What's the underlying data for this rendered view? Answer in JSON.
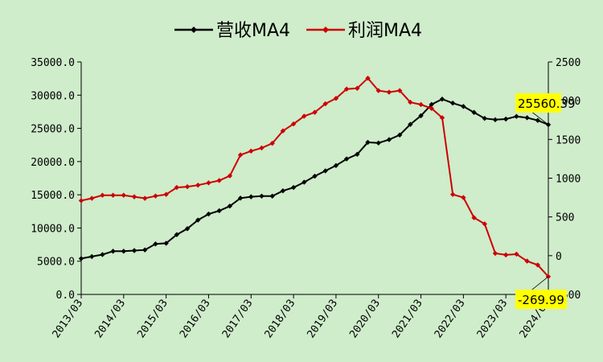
{
  "chart_data": {
    "type": "line",
    "x": [
      "2013/03",
      "2013/06",
      "2013/09",
      "2013/12",
      "2014/03",
      "2014/06",
      "2014/09",
      "2014/12",
      "2015/03",
      "2015/06",
      "2015/09",
      "2015/12",
      "2016/03",
      "2016/06",
      "2016/09",
      "2016/12",
      "2017/03",
      "2017/06",
      "2017/09",
      "2017/12",
      "2018/03",
      "2018/06",
      "2018/09",
      "2018/12",
      "2019/03",
      "2019/06",
      "2019/09",
      "2019/12",
      "2020/03",
      "2020/06",
      "2020/09",
      "2020/12",
      "2021/03",
      "2021/06",
      "2021/09",
      "2021/12",
      "2022/03",
      "2022/06",
      "2022/09",
      "2022/12",
      "2023/03",
      "2023/06",
      "2023/09",
      "2023/12",
      "2024/03"
    ],
    "x_tick_labels": [
      "2013/03",
      "2014/03",
      "2015/03",
      "2016/03",
      "2017/03",
      "2018/03",
      "2019/03",
      "2020/03",
      "2021/03",
      "2022/03",
      "2023/03",
      "2024/03"
    ],
    "series": [
      {
        "name": "营收MA4",
        "axis": "left",
        "color": "#000000",
        "values": [
          5400,
          5700,
          6000,
          6500,
          6500,
          6600,
          6700,
          7600,
          7700,
          9000,
          9900,
          11200,
          12100,
          12600,
          13300,
          14500,
          14700,
          14800,
          14800,
          15600,
          16100,
          16900,
          17800,
          18600,
          19400,
          20400,
          21100,
          22900,
          22800,
          23300,
          24000,
          25600,
          26900,
          28600,
          29400,
          28800,
          28300,
          27400,
          26500,
          26300,
          26400,
          26800,
          26600,
          26200,
          25560.39
        ]
      },
      {
        "name": "利润MA4",
        "axis": "right",
        "color": "#cc0000",
        "values": [
          710,
          740,
          780,
          780,
          780,
          760,
          740,
          770,
          790,
          880,
          890,
          910,
          940,
          970,
          1030,
          1300,
          1350,
          1390,
          1450,
          1610,
          1700,
          1800,
          1850,
          1960,
          2030,
          2150,
          2160,
          2290,
          2130,
          2110,
          2130,
          1980,
          1950,
          1900,
          1780,
          790,
          750,
          490,
          410,
          30,
          10,
          20,
          -70,
          -120,
          -269.99
        ]
      }
    ],
    "y_left": {
      "lim": [
        0,
        35000
      ],
      "ticks": [
        0,
        5000,
        10000,
        15000,
        20000,
        25000,
        30000,
        35000
      ],
      "tick_labels": [
        "0.0",
        "5000.0",
        "10000.0",
        "15000.0",
        "20000.0",
        "25000.0",
        "30000.0",
        "35000.0"
      ]
    },
    "y_right": {
      "lim": [
        -500,
        2500
      ],
      "ticks": [
        -500,
        0,
        500,
        1000,
        1500,
        2000,
        2500
      ],
      "tick_labels": [
        "-500",
        "0",
        "500",
        "1000",
        "1500",
        "2000",
        "2500"
      ]
    },
    "callouts": [
      {
        "series": 0,
        "text": "25560.39"
      },
      {
        "series": 1,
        "text": "-269.99"
      }
    ],
    "legend_position": "top-center",
    "grid": false,
    "title": "",
    "xlabel": "",
    "ylabel": ""
  }
}
